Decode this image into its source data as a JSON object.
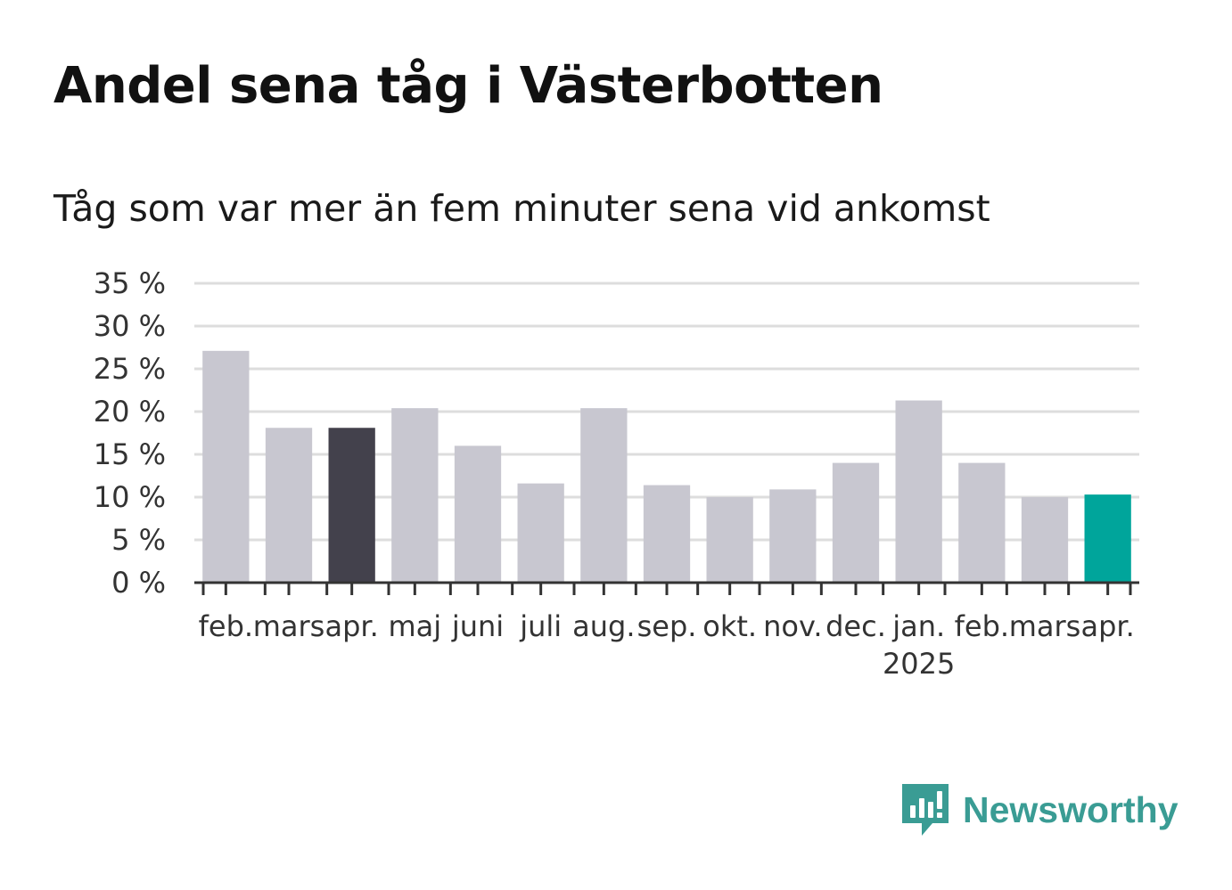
{
  "chart_data": {
    "type": "bar",
    "title": "Andel sena tåg i Västerbotten",
    "subtitle": "Tåg som var mer än fem minuter sena vid ankomst",
    "xlabel": "",
    "ylabel": "",
    "categories": [
      "feb.",
      "mars",
      "apr.",
      "maj",
      "juni",
      "juli",
      "aug.",
      "sep.",
      "okt.",
      "nov.",
      "dec.",
      "jan.",
      "feb.",
      "mars",
      "apr."
    ],
    "year_labels": [
      {
        "category_index": 11,
        "label": "2025"
      }
    ],
    "values": [
      27.1,
      18.1,
      18.1,
      20.4,
      16.0,
      11.6,
      20.4,
      11.4,
      10.0,
      10.9,
      14.0,
      21.3,
      14.0,
      10.0,
      10.3
    ],
    "bar_colors": [
      "#c8c7d0",
      "#c8c7d0",
      "#43414c",
      "#c8c7d0",
      "#c8c7d0",
      "#c8c7d0",
      "#c8c7d0",
      "#c8c7d0",
      "#c8c7d0",
      "#c8c7d0",
      "#c8c7d0",
      "#c8c7d0",
      "#c8c7d0",
      "#c8c7d0",
      "#00a59b"
    ],
    "ylim": [
      0,
      35
    ],
    "yticks": [
      0,
      5,
      10,
      15,
      20,
      25,
      30,
      35
    ],
    "ytick_labels": [
      "0 %",
      "5 %",
      "10 %",
      "15 %",
      "20 %",
      "25 %",
      "30 %",
      "35 %"
    ],
    "grid": true,
    "legend": "none"
  },
  "colors": {
    "default_bar": "#c8c7d0",
    "comparison_bar": "#43414c",
    "current_bar": "#00a59b",
    "gridline": "#dddddd",
    "axis": "#333333",
    "brand": "#3a9c94"
  },
  "branding": {
    "logo_icon": "newsworthy-chart-icon",
    "name": "Newsworthy"
  }
}
